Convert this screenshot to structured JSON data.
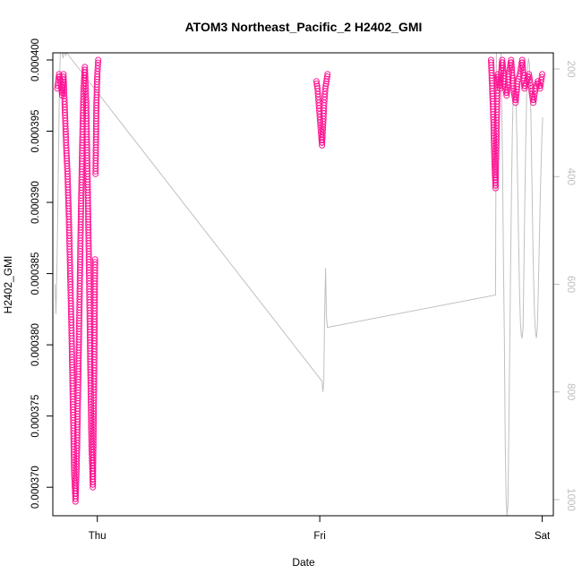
{
  "chart_data": {
    "type": "scatter",
    "title": "ATOM3 Northeast_Pacific_2 H2402_GMI",
    "xlabel": "Date",
    "ylabel": "H2402_GMI",
    "x_tick_labels": [
      "Thu",
      "Fri",
      "Sat"
    ],
    "x_range_days": [
      -0.2,
      2.05
    ],
    "ylim": [
      0.000368,
      0.0004005
    ],
    "y_ticks": [
      0.00037,
      0.000375,
      0.00038,
      0.000385,
      0.00039,
      0.000395,
      0.0004
    ],
    "y_tick_labels": [
      "0.000370",
      "0.000375",
      "0.000380",
      "0.000385",
      "0.000390",
      "0.000395",
      "0.000400"
    ],
    "y2_ticks": [
      200,
      400,
      600,
      800,
      1000
    ],
    "y2_tick_labels": [
      "200",
      "400",
      "600",
      "800",
      "1000"
    ],
    "y2lim_reversed": [
      1030,
      170
    ],
    "marker_color": "#ff1493",
    "secondary_line_color": "#c0c0c0",
    "grid": false,
    "series": [
      {
        "segments": [
          {
            "x": [
              -0.18,
              -0.172,
              -0.165,
              -0.158,
              -0.152,
              -0.146,
              -0.14,
              -0.134,
              -0.128,
              -0.122,
              -0.116,
              -0.11,
              -0.104,
              -0.098,
              -0.092,
              -0.086,
              -0.08,
              -0.074,
              -0.068,
              -0.062,
              -0.056,
              -0.05,
              -0.044,
              -0.038,
              -0.032,
              -0.026,
              -0.02,
              -0.014,
              -0.01
            ],
            "y": [
              0.000398,
              0.000399,
              0.0003985,
              0.0003975,
              0.000399,
              0.0003965,
              0.000394,
              0.000392,
              0.000389,
              0.000385,
              0.000381,
              0.000376,
              0.000371,
              0.000369,
              0.000372,
              0.000377,
              0.000383,
              0.000389,
              0.000394,
              0.000398,
              0.0003995,
              0.000397,
              0.000392,
              0.000386,
              0.000379,
              0.000373,
              0.00037,
              0.000378,
              0.000386
            ]
          },
          {
            "x": [
              -0.008,
              -0.004,
              0.0,
              0.004
            ],
            "y": [
              0.000392,
              0.000397,
              0.000399,
              0.0004
            ]
          },
          {
            "x": [
              0.985,
              0.99,
              0.995,
              1.0,
              1.005,
              1.01,
              1.015,
              1.02,
              1.025,
              1.03,
              1.035
            ],
            "y": [
              0.0003985,
              0.000398,
              0.000397,
              0.000396,
              0.000395,
              0.000394,
              0.0003955,
              0.000397,
              0.000398,
              0.0003985,
              0.000399
            ]
          },
          {
            "x": [
              1.77,
              1.775,
              1.78,
              1.785,
              1.79,
              1.795,
              1.8,
              1.81,
              1.82,
              1.83,
              1.84,
              1.85,
              1.86,
              1.87,
              1.88,
              1.89,
              1.9,
              1.91,
              1.92,
              1.93,
              1.94,
              1.95,
              1.96,
              1.97,
              1.98,
              1.99,
              2.0
            ],
            "y": [
              0.0004,
              0.000398,
              0.000396,
              0.000393,
              0.000391,
              0.000395,
              0.000399,
              0.000398,
              0.0004,
              0.0003985,
              0.0003975,
              0.000399,
              0.0004,
              0.000398,
              0.000397,
              0.0003985,
              0.000399,
              0.0004,
              0.000398,
              0.0003985,
              0.000399,
              0.000398,
              0.000397,
              0.000398,
              0.0003985,
              0.000398,
              0.000399
            ]
          }
        ]
      }
    ],
    "secondary_line": {
      "x": [
        -0.19,
        -0.186,
        -0.182,
        -0.178,
        -0.174,
        -0.17,
        -0.166,
        -0.162,
        -0.158,
        -0.154,
        -0.15,
        -0.146,
        -0.142,
        -0.138,
        1.01,
        1.014,
        1.018,
        1.022,
        1.026,
        1.03,
        1.034,
        1.79,
        1.794,
        1.798,
        1.802,
        1.806,
        1.81,
        1.814,
        1.818,
        1.822,
        1.826,
        1.83,
        1.834,
        1.838,
        1.842,
        1.846,
        1.85,
        1.854,
        1.858,
        1.862,
        1.866,
        1.87,
        1.874,
        1.878,
        1.882,
        1.886,
        1.89,
        1.894,
        1.898,
        1.902,
        1.906,
        1.91,
        1.914,
        1.918,
        1.922,
        1.926,
        1.93,
        1.934,
        1.938,
        1.942,
        1.946,
        1.95,
        1.954,
        1.958,
        1.962,
        1.966,
        1.97,
        1.974,
        1.978,
        1.982,
        1.986,
        1.99,
        1.994,
        1.998,
        2.002
      ],
      "y": [
        600,
        655,
        580,
        470,
        340,
        220,
        170,
        160,
        165,
        180,
        165,
        170,
        175,
        170,
        780,
        800,
        780,
        650,
        570,
        660,
        680,
        620,
        150,
        130,
        110,
        100,
        90,
        110,
        270,
        400,
        560,
        700,
        900,
        1000,
        1030,
        1010,
        870,
        720,
        560,
        420,
        310,
        240,
        210,
        230,
        260,
        330,
        420,
        520,
        610,
        670,
        695,
        700,
        680,
        560,
        440,
        330,
        250,
        200,
        180,
        190,
        230,
        310,
        410,
        520,
        600,
        660,
        690,
        700,
        680,
        620,
        540,
        460,
        390,
        330,
        290
      ]
    }
  }
}
